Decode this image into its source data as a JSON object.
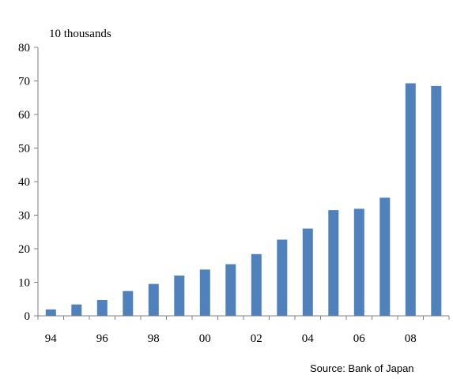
{
  "chart_data": {
    "type": "bar",
    "ylabel": "10 thousands",
    "xlabel": "",
    "title": "",
    "categories": [
      "94",
      "95",
      "96",
      "97",
      "98",
      "99",
      "00",
      "01",
      "02",
      "03",
      "04",
      "05",
      "06",
      "07",
      "08",
      "09"
    ],
    "x_tick_labels": [
      "94",
      "",
      "96",
      "",
      "98",
      "",
      "00",
      "",
      "02",
      "",
      "04",
      "",
      "06",
      "",
      "08",
      ""
    ],
    "values": [
      1.9,
      3.4,
      4.7,
      7.4,
      9.5,
      12.0,
      13.8,
      15.4,
      18.4,
      22.7,
      26.0,
      31.5,
      31.9,
      35.2,
      69.3,
      68.5
    ],
    "ylim": [
      0,
      80
    ],
    "yticks": [
      0,
      10,
      20,
      30,
      40,
      50,
      60,
      70,
      80
    ],
    "grid": false,
    "bar_color": "#4F81BD",
    "source": "Source: Bank of Japan"
  }
}
